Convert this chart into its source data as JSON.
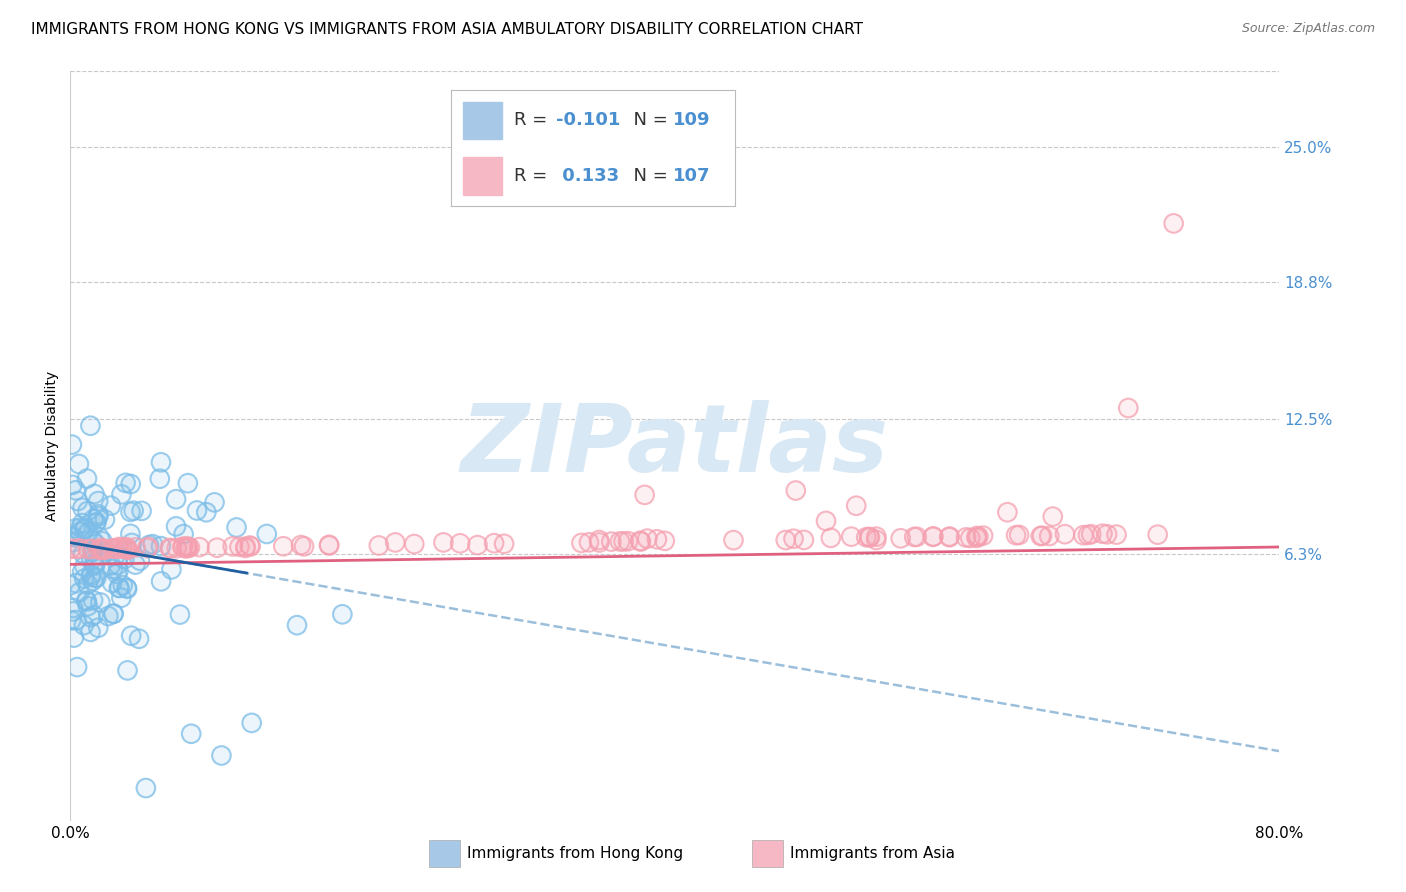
{
  "title": "IMMIGRANTS FROM HONG KONG VS IMMIGRANTS FROM ASIA AMBULATORY DISABILITY CORRELATION CHART",
  "source": "Source: ZipAtlas.com",
  "ylabel": "Ambulatory Disability",
  "watermark": "ZIPatlas",
  "hk_R": -0.101,
  "hk_N": 109,
  "asia_R": 0.133,
  "asia_N": 107,
  "xlim": [
    0.0,
    0.8
  ],
  "ylim": [
    -0.06,
    0.285
  ],
  "yticks": [
    0.063,
    0.125,
    0.188,
    0.25
  ],
  "ytick_labels": [
    "6.3%",
    "12.5%",
    "18.8%",
    "25.0%"
  ],
  "xticks": [
    0.0,
    0.2,
    0.4,
    0.6,
    0.8
  ],
  "xtick_labels": [
    "0.0%",
    "",
    "",
    "",
    "80.0%"
  ],
  "hk_color": "#7bbde8",
  "asia_color": "#f5a0b0",
  "background_color": "#ffffff",
  "grid_color": "#c8c8c8",
  "title_fontsize": 11,
  "axis_label_fontsize": 10,
  "tick_fontsize": 11,
  "watermark_color": "#d8e8f5",
  "hk_trend_color": "#2060a0",
  "hk_trend_dash_color": "#90b8d8",
  "asia_trend_color": "#e06080",
  "legend_hk_color": "#a8c8e8",
  "legend_asia_color": "#f5b8c4",
  "ytick_color": "#4a90d0",
  "xtick_color": "#000000",
  "hk_intercept": 0.068,
  "hk_slope": -0.12,
  "asia_intercept": 0.058,
  "asia_slope": 0.01
}
